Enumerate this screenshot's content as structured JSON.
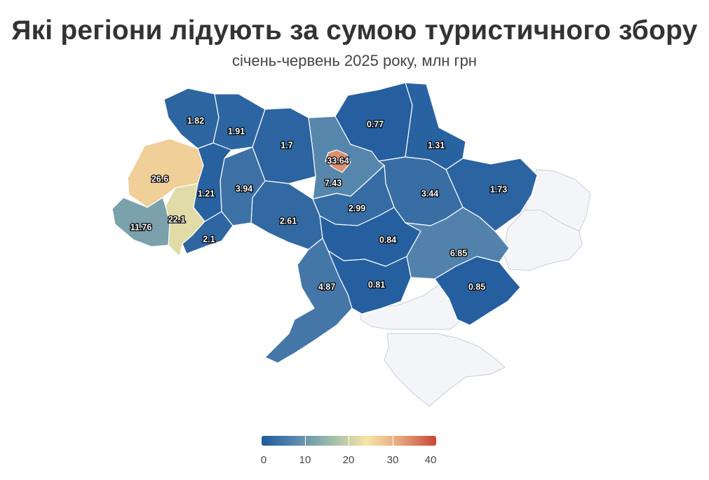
{
  "title": "Які регіони лідують за сумою туристичного збору",
  "subtitle": "січень-червень 2025 року, млн грн",
  "legend": {
    "ticks": [
      "0",
      "10",
      "20",
      "30",
      "40"
    ],
    "range": [
      0,
      40
    ],
    "colors": [
      "#1f5a9e",
      "#5b89ad",
      "#9ebcaa",
      "#f6e5a6",
      "#e4a27b",
      "#c9453a"
    ]
  },
  "chart_data": {
    "type": "choropleth",
    "regions": [
      {
        "id": "volyn",
        "value": 1.82,
        "label": "1.82"
      },
      {
        "id": "rivne",
        "value": 1.91,
        "label": "1.91"
      },
      {
        "id": "zhytomyr",
        "value": 1.7,
        "label": "1.7"
      },
      {
        "id": "kyiv-oblast",
        "value": 7.43,
        "label": "7.43"
      },
      {
        "id": "kyiv-city",
        "value": 33.64,
        "label": "33.64"
      },
      {
        "id": "chernihiv",
        "value": 0.77,
        "label": "0.77"
      },
      {
        "id": "sumy",
        "value": 1.31,
        "label": "1.31"
      },
      {
        "id": "kharkiv",
        "value": 1.73,
        "label": "1.73"
      },
      {
        "id": "poltava",
        "value": 3.44,
        "label": "3.44"
      },
      {
        "id": "cherkasy",
        "value": 2.99,
        "label": "2.99"
      },
      {
        "id": "vinnytsia",
        "value": 2.61,
        "label": "2.61"
      },
      {
        "id": "khmelnytskyi",
        "value": 3.94,
        "label": "3.94"
      },
      {
        "id": "ternopil",
        "value": 1.21,
        "label": "1.21"
      },
      {
        "id": "lviv",
        "value": 26.6,
        "label": "26.6"
      },
      {
        "id": "ivano-frankivsk",
        "value": 22.1,
        "label": "22.1"
      },
      {
        "id": "zakarpattia",
        "value": 11.76,
        "label": "11.76"
      },
      {
        "id": "chernivtsi",
        "value": 2.1,
        "label": "2.1"
      },
      {
        "id": "kirovohrad",
        "value": 0.84,
        "label": "0.84"
      },
      {
        "id": "dnipropetrovsk",
        "value": 6.85,
        "label": "6.85"
      },
      {
        "id": "odesa",
        "value": 4.87,
        "label": "4.87"
      },
      {
        "id": "mykolaiv",
        "value": 0.81,
        "label": "0.81"
      },
      {
        "id": "zaporizhzhia",
        "value": 0.85,
        "label": "0.85"
      }
    ],
    "no_data_regions": [
      "luhansk",
      "donetsk",
      "kherson-left-bank",
      "crimea"
    ]
  }
}
